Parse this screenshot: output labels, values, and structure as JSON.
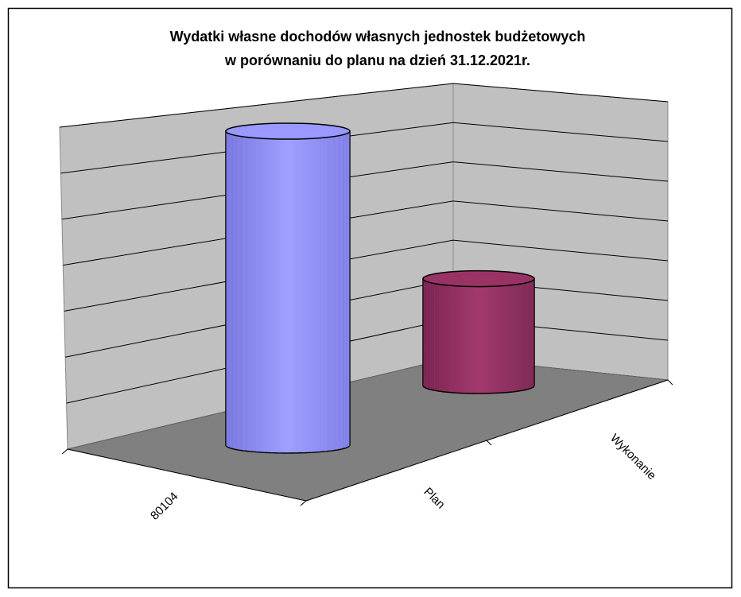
{
  "chart_data": {
    "type": "bar3d-cylinder",
    "title": [
      "Wydatki własne dochodów własnych jednostek budżetowych",
      "w porównaniu do planu na dzień 31.12.2021r."
    ],
    "categories": [
      "80104"
    ],
    "series": [
      {
        "name": "Plan",
        "color": "#9999ff",
        "values": [
          7
        ]
      },
      {
        "name": "Wykonanie",
        "color": "#993366",
        "values": [
          2.4
        ]
      }
    ],
    "ylim": [
      0,
      7
    ],
    "yticks": [
      0,
      1,
      2,
      3,
      4,
      5,
      6,
      7
    ],
    "grid": true
  }
}
